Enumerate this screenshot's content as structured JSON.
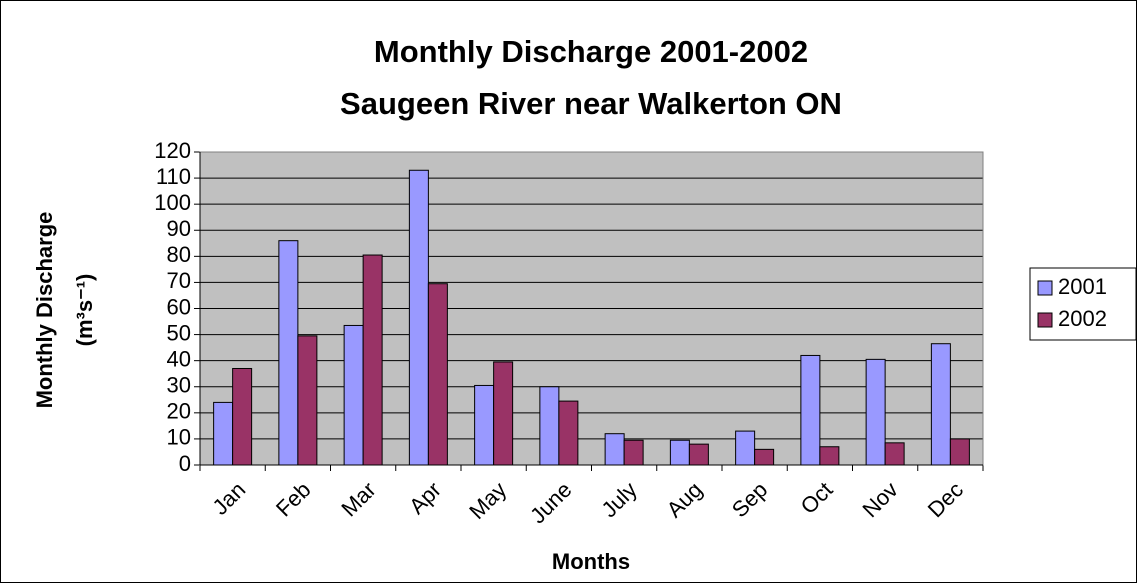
{
  "chart_data": {
    "type": "bar",
    "title": [
      "Monthly Discharge 2001-2002",
      "Saugeen River near Walkerton ON"
    ],
    "y_label": [
      "Monthly Discharge",
      "(m³s⁻¹)"
    ],
    "x_label": "Months",
    "categories": [
      "Jan",
      "Feb",
      "Mar",
      "Apr",
      "May",
      "June",
      "July",
      "Aug",
      "Sep",
      "Oct",
      "Nov",
      "Dec"
    ],
    "series": [
      {
        "name": "2001",
        "color": "#9999ff",
        "values": [
          24,
          86,
          53.5,
          113,
          30.5,
          30,
          12,
          9.5,
          13,
          42,
          40.5,
          46.5
        ]
      },
      {
        "name": "2002",
        "color": "#993366",
        "values": [
          37,
          49.5,
          80.5,
          69.5,
          39.5,
          24.5,
          9.5,
          8,
          6,
          7,
          8.5,
          10
        ]
      }
    ],
    "ylim": [
      0,
      120
    ],
    "yticks": [
      0,
      10,
      20,
      30,
      40,
      50,
      60,
      70,
      80,
      90,
      100,
      110,
      120
    ],
    "grid": true,
    "plot_background": "#c0c0c0",
    "legend": "right"
  }
}
